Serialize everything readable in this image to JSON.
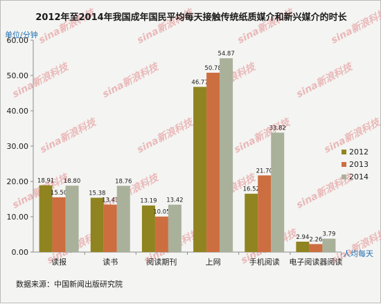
{
  "chart_data": {
    "type": "bar",
    "title": "2012年至2014年我国成年国民平均每天接触传统纸质媒介和新兴媒介的时长",
    "ylabel": "单位/分钟",
    "xnote": "人均每天",
    "source": "数据来源：中国新闻出版研究院",
    "ylim": [
      0,
      60
    ],
    "yticks": [
      "0.00",
      "10.00",
      "20.00",
      "30.00",
      "40.00",
      "50.00",
      "60.00"
    ],
    "categories": [
      "读报",
      "读书",
      "阅读期刊",
      "上网",
      "手机阅读",
      "电子阅读器阅读"
    ],
    "series": [
      {
        "name": "2012",
        "color": "#8f8420",
        "values": [
          18.91,
          15.38,
          13.19,
          46.77,
          16.52,
          2.94
        ],
        "labels": [
          "18.91",
          "15.38",
          "13.19",
          "46.77",
          "16.52",
          "2.94"
        ]
      },
      {
        "name": "2013",
        "color": "#cc6e40",
        "values": [
          15.5,
          13.43,
          10.05,
          50.78,
          21.7,
          2.26
        ],
        "labels": [
          "15.50",
          "13.43",
          "10.05",
          "50.78",
          "21.70",
          "2.26"
        ]
      },
      {
        "name": "2014",
        "color": "#a9b19b",
        "values": [
          18.8,
          18.76,
          13.42,
          54.87,
          33.82,
          3.79
        ],
        "labels": [
          "18.80",
          "18.76",
          "13.42",
          "54.87",
          "33.82",
          "3.79"
        ]
      }
    ],
    "legend_position": "right",
    "grid": false
  },
  "watermark": "sina新浪科技"
}
